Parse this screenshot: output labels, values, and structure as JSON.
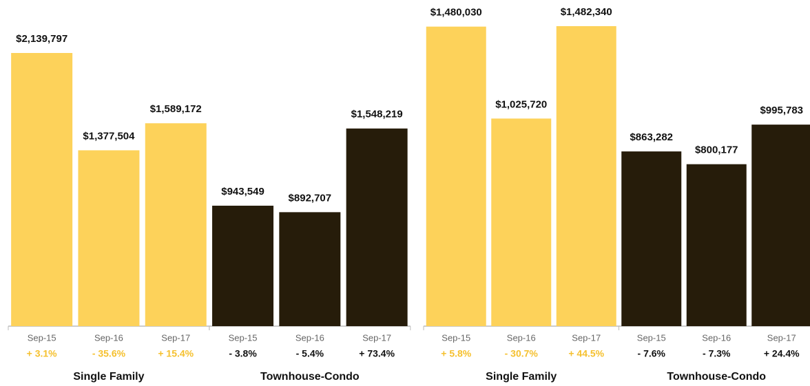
{
  "chart_data": [
    {
      "type": "bar",
      "groups": [
        {
          "name": "Single Family",
          "color": "#fdd25a",
          "change_color": "#f5c02e",
          "categories": [
            "Sep-15",
            "Sep-16",
            "Sep-17"
          ],
          "values": [
            2139797,
            1377504,
            1589172
          ],
          "value_labels": [
            "$2,139,797",
            "$1,377,504",
            "$1,589,172"
          ],
          "changes": [
            "+ 3.1%",
            "- 35.6%",
            "+ 15.4%"
          ]
        },
        {
          "name": "Townhouse-Condo",
          "color": "#261c0a",
          "change_color": "#111111",
          "categories": [
            "Sep-15",
            "Sep-16",
            "Sep-17"
          ],
          "values": [
            943549,
            892707,
            1548219
          ],
          "value_labels": [
            "$943,549",
            "$892,707",
            "$1,548,219"
          ],
          "changes": [
            "- 3.8%",
            "- 5.4%",
            "+ 73.4%"
          ]
        }
      ]
    },
    {
      "type": "bar",
      "groups": [
        {
          "name": "Single Family",
          "color": "#fdd25a",
          "change_color": "#f5c02e",
          "categories": [
            "Sep-15",
            "Sep-16",
            "Sep-17"
          ],
          "values": [
            1480030,
            1025720,
            1482340
          ],
          "value_labels": [
            "$1,480,030",
            "$1,025,720",
            "$1,482,340"
          ],
          "changes": [
            "+ 5.8%",
            "- 30.7%",
            "+ 44.5%"
          ]
        },
        {
          "name": "Townhouse-Condo",
          "color": "#261c0a",
          "change_color": "#111111",
          "categories": [
            "Sep-15",
            "Sep-16",
            "Sep-17"
          ],
          "values": [
            863282,
            800177,
            995783
          ],
          "value_labels": [
            "$863,282",
            "$800,177",
            "$995,783"
          ],
          "changes": [
            "- 7.6%",
            "- 7.3%",
            "+ 24.4%"
          ]
        }
      ]
    }
  ]
}
